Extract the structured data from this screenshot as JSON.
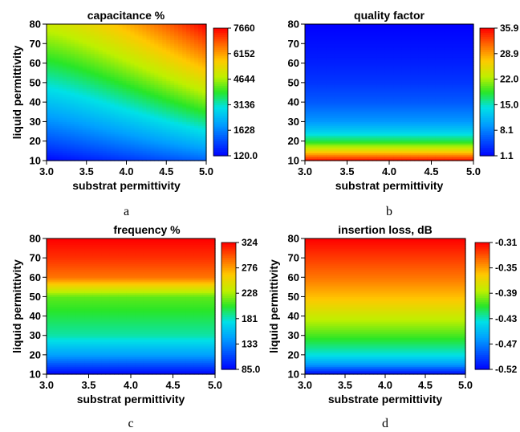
{
  "chart_data": [
    {
      "type": "heatmap",
      "caption": "a",
      "title": "capacitance %",
      "xlabel": "substrat permittivity",
      "ylabel": "liquid permittivity",
      "xlim": [
        3.0,
        5.0
      ],
      "ylim": [
        10,
        80
      ],
      "xticks": [
        "3.0",
        "3.5",
        "4.0",
        "4.5",
        "5.0"
      ],
      "yticks": [
        "10",
        "20",
        "30",
        "40",
        "50",
        "60",
        "70",
        "80"
      ],
      "colorbar": {
        "range": [
          120.0,
          7660
        ],
        "ticks": [
          "120.0",
          "1628",
          "3136",
          "4644",
          "6152",
          "7660"
        ]
      },
      "corner_values": {
        "x3_y10": 120,
        "x5_y10": 1200,
        "x3_y80": 5000,
        "x5_y80": 7660
      }
    },
    {
      "type": "heatmap",
      "caption": "b",
      "title": "quality factor",
      "xlabel": "substrat permittivity",
      "ylabel": "",
      "xlim": [
        3.0,
        5.0
      ],
      "ylim": [
        10,
        80
      ],
      "xticks": [
        "3.0",
        "3.5",
        "4.0",
        "4.5",
        "5.0"
      ],
      "yticks": [
        "10",
        "20",
        "30",
        "40",
        "50",
        "60",
        "70",
        "80"
      ],
      "colorbar": {
        "range": [
          1.1,
          35.9
        ],
        "ticks": [
          "1.1",
          "8.1",
          "15.0",
          "22.0",
          "28.9",
          "35.9"
        ]
      },
      "profile_vs_liquid": {
        "y": [
          10,
          15,
          20,
          25,
          30,
          40,
          50,
          60,
          70,
          80
        ],
        "value": [
          35.9,
          26,
          18,
          13,
          9.5,
          6,
          4,
          2.8,
          1.9,
          1.1
        ]
      }
    },
    {
      "type": "heatmap",
      "caption": "c",
      "title": "frequency %",
      "xlabel": "substrat permittivity",
      "ylabel": "liquid permittivity",
      "xlim": [
        3.0,
        5.0
      ],
      "ylim": [
        10,
        80
      ],
      "xticks": [
        "3.0",
        "3.5",
        "4.0",
        "4.5",
        "5.0"
      ],
      "yticks": [
        "10",
        "20",
        "30",
        "40",
        "50",
        "60",
        "70",
        "80"
      ],
      "colorbar": {
        "range": [
          85.0,
          324
        ],
        "ticks": [
          "85.0",
          "133",
          "181",
          "228",
          "276",
          "324"
        ]
      },
      "profile_vs_liquid": {
        "y": [
          10,
          15,
          20,
          25,
          30,
          40,
          50,
          55,
          60,
          70,
          80
        ],
        "value": [
          85,
          115,
          145,
          165,
          185,
          200,
          215,
          250,
          290,
          310,
          324
        ]
      }
    },
    {
      "type": "heatmap",
      "caption": "d",
      "title": "insertion loss, dB",
      "xlabel": "substrate permittivity",
      "ylabel": "liquid permittivity",
      "xlim": [
        3.0,
        5.0
      ],
      "ylim": [
        10,
        80
      ],
      "xticks": [
        "3.0",
        "3.5",
        "4.0",
        "4.5",
        "5.0"
      ],
      "yticks": [
        "10",
        "20",
        "30",
        "40",
        "50",
        "60",
        "70",
        "80"
      ],
      "colorbar": {
        "range": [
          -0.52,
          -0.31
        ],
        "ticks": [
          "-0.31",
          "-0.35",
          "-0.39",
          "-0.43",
          "-0.47",
          "-0.52"
        ]
      },
      "profile_vs_liquid": {
        "y": [
          10,
          15,
          20,
          30,
          40,
          50,
          60,
          70,
          80
        ],
        "value": [
          -0.52,
          -0.47,
          -0.44,
          -0.41,
          -0.385,
          -0.36,
          -0.34,
          -0.325,
          -0.31
        ]
      }
    }
  ]
}
